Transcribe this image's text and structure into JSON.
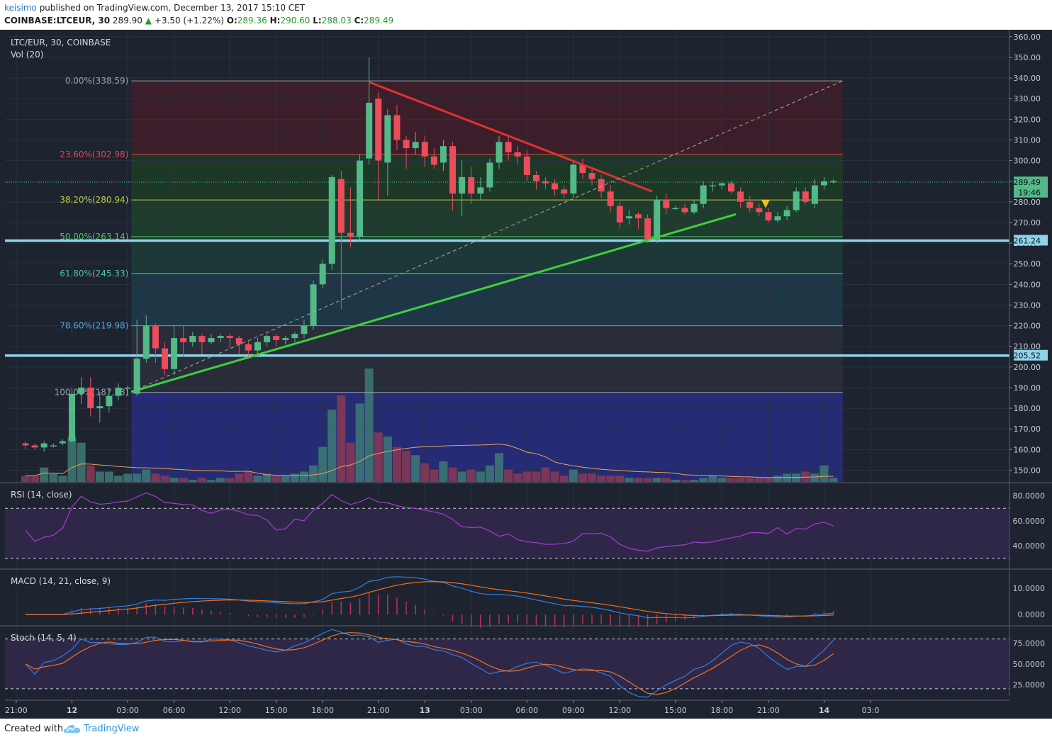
{
  "header": {
    "author": "keisimo",
    "published": "published on TradingView.com, December 13, 2017 15:10 CET",
    "symbol": "COINBASE:LTCEUR, 30",
    "last": "289.90",
    "change": "+3.50 (+1.22%)",
    "o_label": "O:",
    "o": "289.36",
    "h_label": "H:",
    "h": "290.60",
    "l_label": "L:",
    "l": "288.03",
    "c_label": "C:",
    "c": "289.49"
  },
  "footer": {
    "created": "Created with",
    "brand": "TradingView"
  },
  "colors": {
    "background": "#1e2330",
    "up": "#53b987",
    "down": "#eb4d5c",
    "red_trendline": "#e03030",
    "green_trendline": "#3ed03a",
    "support_line": "#8fd3e8",
    "rsi_line": "#a83ad6",
    "macd_line": "#2f80e0",
    "signal_line": "#f07020",
    "stoch_k": "#2f80e0",
    "stoch_d": "#f07020"
  },
  "chart_data": {
    "type": "candlestick",
    "title": "LTC/EUR, 30, COINBASE",
    "volume_label": "Vol (20)",
    "y_axis": {
      "range": [
        145,
        362
      ],
      "ticks": [
        "360.00",
        "350.00",
        "340.00",
        "330.00",
        "320.00",
        "310.00",
        "300.00",
        "290.00",
        "280.00",
        "270.00",
        "260.00",
        "250.00",
        "240.00",
        "230.00",
        "220.00",
        "210.00",
        "200.00",
        "190.00",
        "180.00",
        "170.00",
        "160.00",
        "150.00"
      ]
    },
    "x_axis": {
      "ticks": [
        "21:00",
        "12",
        "03:00",
        "06:00",
        "12:00",
        "15:00",
        "18:00",
        "21:00",
        "13",
        "03:00",
        "06:00",
        "09:00",
        "12:00",
        "15:00",
        "18:00",
        "21:00",
        "14",
        "03:0"
      ]
    },
    "price_tags": [
      {
        "label": "289.49",
        "value": 289.49,
        "color": "#53b987"
      },
      {
        "label": "19:46",
        "value": 284.5,
        "color": "#53b987"
      },
      {
        "label": "261.24",
        "value": 261.24,
        "color": "#8fd3e8"
      },
      {
        "label": "205.52",
        "value": 205.52,
        "color": "#8fd3e8"
      }
    ],
    "fibonacci": [
      {
        "label": "0.00%(338.59)",
        "value": 338.59
      },
      {
        "label": "23.60%(302.98)",
        "value": 302.98
      },
      {
        "label": "38.20%(280.94)",
        "value": 280.94
      },
      {
        "label": "50.00%(263.14)",
        "value": 263.14
      },
      {
        "label": "61.80%(245.33)",
        "value": 245.33
      },
      {
        "label": "78.60%(219.98)",
        "value": 219.98
      },
      {
        "label": "100.00%(187.68)",
        "value": 187.68
      }
    ],
    "support_levels": [
      261.24,
      205.52
    ],
    "candles": [
      [
        163,
        162,
        164,
        160
      ],
      [
        162,
        161,
        163,
        160
      ],
      [
        161,
        163,
        164,
        159
      ],
      [
        162,
        162,
        163,
        161
      ],
      [
        163,
        164,
        165,
        162
      ],
      [
        164,
        187,
        190,
        163
      ],
      [
        187,
        190,
        195,
        182
      ],
      [
        190,
        180,
        195,
        176
      ],
      [
        180,
        181,
        188,
        173
      ],
      [
        181,
        186,
        190,
        178
      ],
      [
        186,
        190,
        192,
        184
      ],
      [
        190,
        190,
        191,
        186
      ],
      [
        187,
        204,
        223,
        186
      ],
      [
        204,
        220,
        225,
        202
      ],
      [
        220,
        209,
        221,
        202
      ],
      [
        209,
        199,
        212,
        196
      ],
      [
        199,
        214,
        220,
        196
      ],
      [
        214,
        212,
        220,
        205
      ],
      [
        212,
        215,
        217,
        210
      ],
      [
        215,
        212,
        216,
        206
      ],
      [
        212,
        214,
        216,
        211
      ],
      [
        214,
        215,
        216,
        212
      ],
      [
        215,
        214,
        216,
        209
      ],
      [
        214,
        211,
        215,
        206
      ],
      [
        211,
        208,
        213,
        204
      ],
      [
        208,
        212,
        214,
        206
      ],
      [
        212,
        215,
        216,
        210
      ],
      [
        215,
        213,
        216,
        210
      ],
      [
        213,
        214,
        215,
        211
      ],
      [
        214,
        216,
        217,
        212
      ],
      [
        216,
        220,
        223,
        214
      ],
      [
        220,
        240,
        242,
        218
      ],
      [
        240,
        250,
        252,
        238
      ],
      [
        250,
        292,
        293,
        247
      ],
      [
        291,
        265,
        295,
        228
      ],
      [
        265,
        263,
        287,
        258
      ],
      [
        263,
        300,
        303,
        261
      ],
      [
        301,
        328,
        350,
        298
      ],
      [
        330,
        300,
        333,
        281
      ],
      [
        299,
        322,
        325,
        283
      ],
      [
        322,
        310,
        327,
        305
      ],
      [
        310,
        306,
        312,
        296
      ],
      [
        306,
        309,
        314,
        303
      ],
      [
        309,
        302,
        312,
        297
      ],
      [
        302,
        298,
        306,
        296
      ],
      [
        299,
        307,
        310,
        295
      ],
      [
        307,
        284,
        309,
        276
      ],
      [
        284,
        292,
        300,
        273
      ],
      [
        292,
        284,
        297,
        279
      ],
      [
        284,
        287,
        292,
        281
      ],
      [
        287,
        299,
        301,
        285
      ],
      [
        299,
        309,
        312,
        296
      ],
      [
        309,
        304,
        312,
        300
      ],
      [
        304,
        302,
        307,
        298
      ],
      [
        302,
        293,
        305,
        290
      ],
      [
        293,
        290,
        295,
        286
      ],
      [
        290,
        289,
        292,
        286
      ],
      [
        289,
        286,
        291,
        283
      ],
      [
        286,
        284,
        288,
        282
      ],
      [
        284,
        298,
        300,
        282
      ],
      [
        298,
        294,
        301,
        291
      ],
      [
        294,
        291,
        297,
        288
      ],
      [
        291,
        285,
        293,
        282
      ],
      [
        285,
        278,
        288,
        275
      ],
      [
        278,
        270,
        280,
        267
      ],
      [
        272,
        273,
        276,
        269
      ],
      [
        274,
        272,
        275,
        267
      ],
      [
        272,
        262,
        274,
        260
      ],
      [
        262,
        281,
        283,
        260
      ],
      [
        281,
        277,
        284,
        274
      ],
      [
        277,
        277,
        278,
        276
      ],
      [
        277,
        275,
        279,
        274
      ],
      [
        275,
        279,
        281,
        274
      ],
      [
        279,
        288,
        290,
        277
      ],
      [
        288,
        288,
        290,
        285
      ],
      [
        288,
        289,
        290,
        286
      ],
      [
        289,
        285,
        290,
        284
      ],
      [
        285,
        280,
        287,
        277
      ],
      [
        280,
        277,
        283,
        275
      ],
      [
        277,
        275,
        279,
        273
      ],
      [
        275,
        271,
        277,
        270
      ],
      [
        271,
        273,
        275,
        270
      ],
      [
        273,
        276,
        278,
        271
      ],
      [
        276,
        285,
        287,
        275
      ],
      [
        285,
        280,
        287,
        279
      ],
      [
        279,
        288,
        291,
        277
      ],
      [
        288,
        290,
        292,
        286
      ],
      [
        290,
        290,
        291,
        289
      ]
    ],
    "volume": [
      3,
      3,
      7,
      4,
      3,
      22,
      19,
      8,
      5,
      5,
      3,
      4,
      4,
      6,
      4,
      3,
      2,
      2,
      1,
      2,
      1,
      2,
      2,
      4,
      5,
      3,
      4,
      3,
      3,
      4,
      5,
      8,
      17,
      35,
      42,
      19,
      38,
      55,
      24,
      22,
      17,
      15,
      13,
      9,
      6,
      10,
      7,
      5,
      6,
      5,
      8,
      14,
      6,
      4,
      5,
      5,
      7,
      5,
      3,
      6,
      4,
      4,
      3,
      3,
      3,
      2,
      2,
      2,
      2,
      2,
      1,
      1,
      1,
      2,
      3,
      2,
      2,
      2,
      2,
      2,
      2,
      3,
      4,
      4,
      5,
      4,
      8,
      2
    ],
    "trendlines": [
      {
        "name": "descending-resistance",
        "from": [
          15,
          338
        ],
        "to": [
          55.5,
          285
        ],
        "color": "#e03030"
      },
      {
        "name": "ascending-support",
        "from": [
          0,
          188
        ],
        "to": [
          64.5,
          274
        ],
        "color": "#3ed03a"
      },
      {
        "name": "fib-diagonal",
        "from": [
          0,
          188
        ],
        "to": [
          88,
          338.59
        ],
        "color": "#aaaaaa"
      }
    ],
    "rsi": {
      "label": "RSI (14, close)",
      "ticks": [
        "80.0000",
        "60.0000",
        "40.0000"
      ],
      "levels": [
        70,
        30
      ]
    },
    "macd": {
      "label": "MACD (14, 21, close, 9)",
      "ticks": [
        "10.0000",
        "0.0000"
      ]
    },
    "stoch": {
      "label": "Stoch (14, 5, 4)",
      "ticks": [
        "75.0000",
        "50.0000",
        "25.0000"
      ],
      "levels": [
        80,
        20
      ]
    }
  }
}
